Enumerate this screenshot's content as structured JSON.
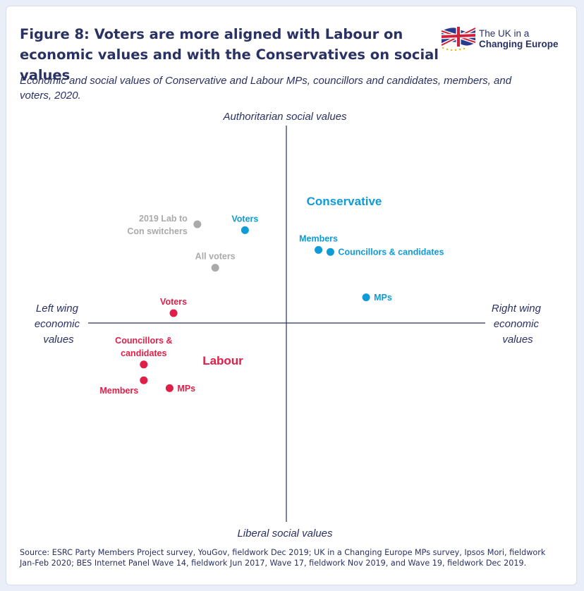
{
  "header": {
    "title": "Figure 8: Voters are more aligned with Labour on economic values and with the Conservatives on social values",
    "subtitle": "Economic and social values of Conservative and Labour MPs, councillors and candidates, members, and voters, 2020."
  },
  "logo": {
    "line1": "The UK in a",
    "line2": "Changing Europe"
  },
  "chart_data": {
    "type": "scatter",
    "axes": {
      "top": "Authoritarian social values",
      "bottom": "Liberal social values",
      "left": [
        "Left wing",
        "economic",
        "values"
      ],
      "right": [
        "Right wing",
        "economic",
        "values"
      ]
    },
    "xlim": [
      -1,
      1
    ],
    "ylim": [
      -1,
      1
    ],
    "grid": false,
    "group_labels": {
      "conservative": "Conservative",
      "labour": "Labour"
    },
    "colors": {
      "conservative": "#0f9ad8",
      "labour": "#e01e48",
      "voters_all": "#aaaaaa",
      "axis": "#2a3163"
    },
    "points": [
      {
        "group": "voters_all",
        "label": [
          "2019 Lab to",
          "Con switchers"
        ],
        "x": -0.45,
        "y": 0.5,
        "anchor": "left"
      },
      {
        "group": "voters_all",
        "label": [
          "All voters"
        ],
        "x": -0.36,
        "y": 0.28,
        "anchor": "above"
      },
      {
        "group": "conservative",
        "label": [
          "Voters"
        ],
        "x": -0.21,
        "y": 0.47,
        "anchor": "above"
      },
      {
        "group": "conservative",
        "label": [
          "Members"
        ],
        "x": 0.16,
        "y": 0.37,
        "anchor": "above"
      },
      {
        "group": "conservative",
        "label": [
          "Councillors & candidates"
        ],
        "x": 0.22,
        "y": 0.36,
        "anchor": "right"
      },
      {
        "group": "conservative",
        "label": [
          "MPs"
        ],
        "x": 0.4,
        "y": 0.13,
        "anchor": "right"
      },
      {
        "group": "labour",
        "label": [
          "Voters"
        ],
        "x": -0.57,
        "y": 0.05,
        "anchor": "above"
      },
      {
        "group": "labour",
        "label": [
          "Councillors &",
          "candidates"
        ],
        "x": -0.72,
        "y": -0.21,
        "anchor": "above"
      },
      {
        "group": "labour",
        "label": [
          "Members"
        ],
        "x": -0.72,
        "y": -0.29,
        "anchor": "below-left"
      },
      {
        "group": "labour",
        "label": [
          "MPs"
        ],
        "x": -0.59,
        "y": -0.33,
        "anchor": "right"
      }
    ]
  },
  "footer": {
    "source": "Source: ESRC Party Members Project survey, YouGov, fieldwork Dec 2019; UK in a Changing Europe MPs survey, Ipsos Mori, fieldwork Jan-Feb 2020; BES Internet Panel Wave 14, fieldwork Jun 2017, Wave 17, fieldwork Nov 2019, and Wave 19, fieldwork Dec 2019."
  }
}
